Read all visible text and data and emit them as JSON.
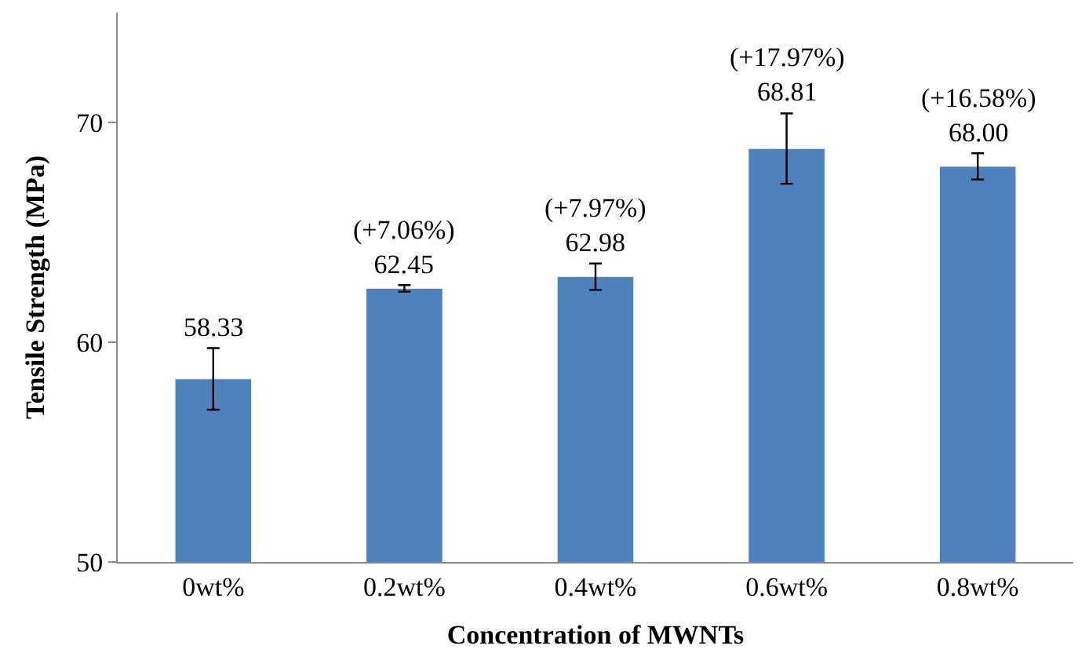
{
  "chart_data": {
    "type": "bar",
    "xlabel": "Concentration of MWNTs",
    "ylabel": "Tensile Strength (MPa)",
    "categories": [
      "0wt%",
      "0.2wt%",
      "0.4wt%",
      "0.6wt%",
      "0.8wt%"
    ],
    "values": [
      58.33,
      62.45,
      62.98,
      68.81,
      68.0
    ],
    "errors": [
      1.4,
      0.15,
      0.6,
      1.6,
      0.6
    ],
    "value_labels": [
      "58.33",
      "(+7.06%)\n62.45",
      "(+7.97%)\n62.98",
      "(+17.97%)\n68.81",
      "(+16.58%)\n68.00"
    ],
    "color": "#4f81bd",
    "ylim": [
      50,
      75
    ],
    "yticks": [
      50,
      60,
      70
    ]
  }
}
